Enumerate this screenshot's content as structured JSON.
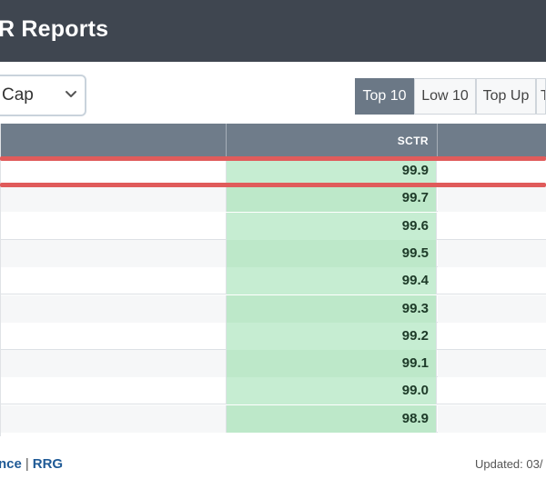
{
  "header": {
    "title": "R Reports"
  },
  "filter": {
    "selected": "Cap"
  },
  "tabs": [
    {
      "label": "Top 10",
      "active": true
    },
    {
      "label": "Low 10",
      "active": false
    },
    {
      "label": "Top Up",
      "active": false
    },
    {
      "label": "T",
      "active": false
    }
  ],
  "table": {
    "columns": {
      "sctr": "SCTR"
    },
    "rows": [
      "99.9",
      "99.7",
      "99.6",
      "99.5",
      "99.4",
      "99.3",
      "99.2",
      "99.1",
      "99.0",
      "98.9"
    ]
  },
  "footer": {
    "link_partial": "nce",
    "separator": "|",
    "link_rrg": "RRG",
    "updated": "Updated: 03/"
  },
  "colors": {
    "header_bg": "#3f4650",
    "table_head_bg": "#6f7c8a",
    "sctr_cell_bg": "#c6edd2",
    "highlight": "#e05b5b",
    "active_tab_bg": "#6b7886"
  },
  "icons": {
    "select_chevron": "chevron-down-icon"
  }
}
